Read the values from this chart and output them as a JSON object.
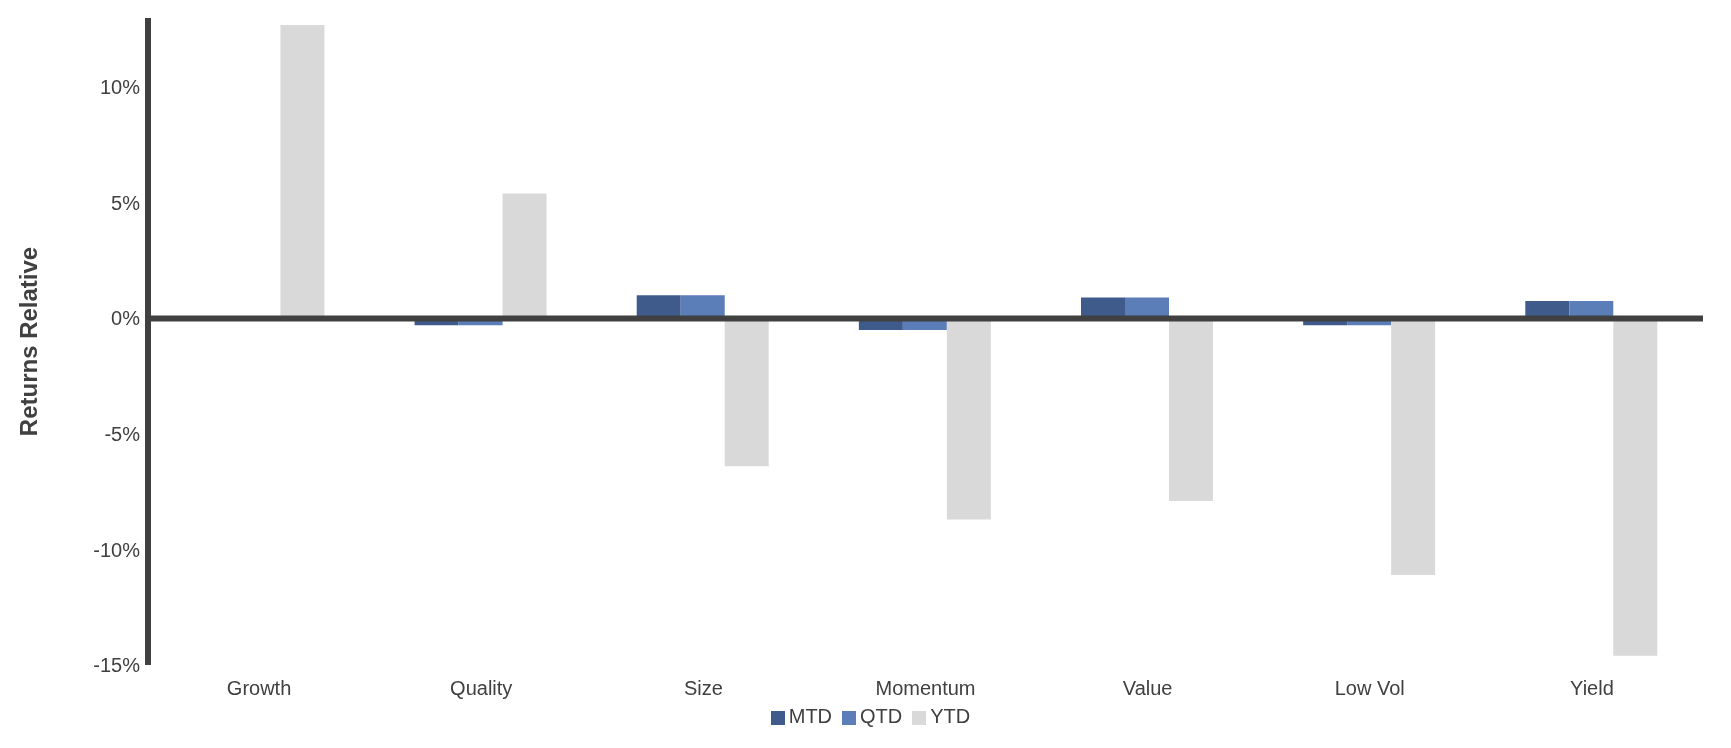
{
  "chart_data": {
    "type": "bar",
    "ylabel": "Returns Relative",
    "categories": [
      "Growth",
      "Quality",
      "Size",
      "Momentum",
      "Value",
      "Low Vol",
      "Yield"
    ],
    "series": [
      {
        "name": "MTD",
        "color": "#3f5b8c",
        "values": [
          0,
          -0.3,
          1.0,
          -0.5,
          0.9,
          -0.3,
          0.75
        ]
      },
      {
        "name": "QTD",
        "color": "#5b7db8",
        "values": [
          0,
          -0.3,
          1.0,
          -0.5,
          0.9,
          -0.3,
          0.75
        ]
      },
      {
        "name": "YTD",
        "color": "#d9d9d9",
        "values": [
          12.7,
          5.4,
          -6.4,
          -8.7,
          -7.9,
          -11.1,
          -14.6
        ]
      }
    ],
    "ylim": [
      -15,
      13
    ],
    "yticks": [
      {
        "value": -15,
        "label": "-15%"
      },
      {
        "value": -10,
        "label": "-10%"
      },
      {
        "value": -5,
        "label": "-5%"
      },
      {
        "value": 0,
        "label": "0%"
      },
      {
        "value": 5,
        "label": "5%"
      },
      {
        "value": 10,
        "label": "10%"
      }
    ],
    "legend": "bottom"
  }
}
